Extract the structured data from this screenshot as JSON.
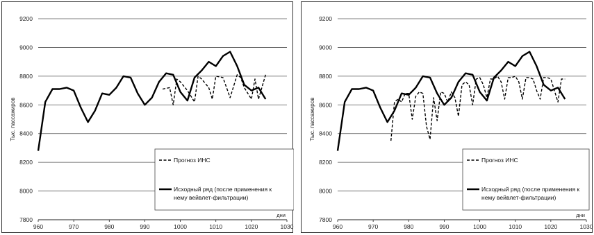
{
  "chart_data": [
    {
      "type": "line",
      "title": "",
      "xlabel": "",
      "ylabel": "Тыс. пассажиров",
      "x_unit": "дни",
      "xlim": [
        960,
        1030
      ],
      "ylim": [
        7800,
        9200
      ],
      "xticks": [
        960,
        970,
        980,
        990,
        1000,
        1010,
        1020,
        1030
      ],
      "yticks": [
        7800,
        8000,
        8200,
        8400,
        8600,
        8800,
        9000,
        9200
      ],
      "grid": "horizontal",
      "legend": "bottom-right",
      "series": [
        {
          "name": "Прогноз ИНС",
          "style": "dashed",
          "x": [
            995,
            997,
            998,
            999,
            1000,
            1002,
            1004,
            1005,
            1006,
            1008,
            1009,
            1010,
            1012,
            1013,
            1014,
            1016,
            1017,
            1018,
            1020,
            1021,
            1022,
            1024
          ],
          "y": [
            8710,
            8720,
            8600,
            8780,
            8760,
            8700,
            8620,
            8800,
            8780,
            8720,
            8640,
            8800,
            8790,
            8720,
            8650,
            8810,
            8790,
            8720,
            8640,
            8780,
            8640,
            8810
          ]
        },
        {
          "name": "Исходный ряд (после применения к нему вейвлет-фильтрации)",
          "style": "solid",
          "x": [
            960,
            962,
            964,
            966,
            968,
            970,
            972,
            974,
            976,
            978,
            980,
            982,
            984,
            986,
            988,
            990,
            992,
            994,
            996,
            998,
            1000,
            1002,
            1004,
            1006,
            1008,
            1010,
            1012,
            1014,
            1016,
            1018,
            1020,
            1022,
            1024
          ],
          "y": [
            8280,
            8620,
            8710,
            8710,
            8720,
            8700,
            8580,
            8480,
            8560,
            8680,
            8670,
            8720,
            8800,
            8790,
            8680,
            8600,
            8650,
            8760,
            8820,
            8810,
            8690,
            8630,
            8790,
            8840,
            8900,
            8870,
            8940,
            8970,
            8870,
            8740,
            8700,
            8720,
            8640
          ]
        }
      ]
    },
    {
      "type": "line",
      "title": "",
      "xlabel": "",
      "ylabel": "Тыс. пассажиров",
      "x_unit": "дни",
      "xlim": [
        960,
        1030
      ],
      "ylim": [
        7800,
        9200
      ],
      "xticks": [
        960,
        970,
        980,
        990,
        1000,
        1010,
        1020,
        1030
      ],
      "yticks": [
        7800,
        8000,
        8200,
        8400,
        8600,
        8800,
        9000,
        9200
      ],
      "grid": "horizontal",
      "legend": "bottom-right",
      "series": [
        {
          "name": "Прогноз ИНС",
          "style": "dashed",
          "x": [
            975,
            976,
            977,
            978,
            979,
            980,
            981,
            982,
            983,
            984,
            985,
            986,
            987,
            988,
            989,
            990,
            991,
            992,
            993,
            994,
            995,
            996,
            997,
            998,
            999,
            1000,
            1001,
            1002,
            1003,
            1004,
            1005,
            1006,
            1007,
            1008,
            1009,
            1010,
            1011,
            1012,
            1013,
            1014,
            1015,
            1016,
            1017,
            1018,
            1019,
            1020,
            1021,
            1022,
            1023,
            1024
          ],
          "y": [
            8350,
            8620,
            8640,
            8620,
            8680,
            8680,
            8500,
            8660,
            8690,
            8680,
            8450,
            8360,
            8650,
            8490,
            8690,
            8680,
            8620,
            8690,
            8650,
            8520,
            8740,
            8760,
            8740,
            8600,
            8780,
            8790,
            8740,
            8650,
            8780,
            8780,
            8800,
            8760,
            8640,
            8790,
            8790,
            8800,
            8760,
            8640,
            8790,
            8790,
            8780,
            8700,
            8640,
            8790,
            8790,
            8780,
            8700,
            8620,
            8780,
            8780
          ]
        },
        {
          "name": "Исходный ряд (после применения к нему вейвлет-фильтрации)",
          "style": "solid",
          "x": [
            960,
            962,
            964,
            966,
            968,
            970,
            972,
            974,
            976,
            978,
            980,
            982,
            984,
            986,
            988,
            990,
            992,
            994,
            996,
            998,
            1000,
            1002,
            1004,
            1006,
            1008,
            1010,
            1012,
            1014,
            1016,
            1018,
            1020,
            1022,
            1024
          ],
          "y": [
            8280,
            8620,
            8710,
            8710,
            8720,
            8700,
            8580,
            8480,
            8560,
            8680,
            8670,
            8720,
            8800,
            8790,
            8680,
            8600,
            8650,
            8760,
            8820,
            8810,
            8690,
            8630,
            8790,
            8840,
            8900,
            8870,
            8940,
            8970,
            8870,
            8740,
            8700,
            8720,
            8640
          ]
        }
      ]
    }
  ]
}
